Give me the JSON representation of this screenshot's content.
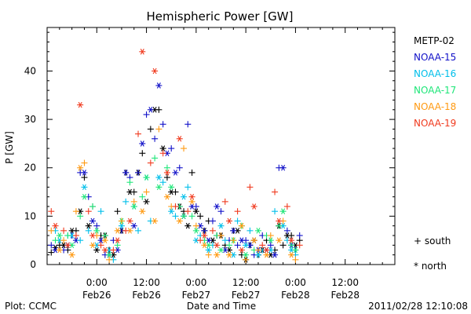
{
  "chart_data": {
    "type": "scatter",
    "title": "Hemispheric Power [GW]",
    "xlabel": "Date and Time",
    "ylabel": "P [GW]",
    "x_unit": "hours",
    "xlim": [
      -12,
      72
    ],
    "ylim": [
      0,
      49
    ],
    "yticks": [
      0,
      10,
      20,
      30,
      40
    ],
    "xticks": [
      {
        "x": 0,
        "time": "0:00",
        "date": "Feb26"
      },
      {
        "x": 12,
        "time": "12:00",
        "date": "Feb26"
      },
      {
        "x": 24,
        "time": "0:00",
        "date": "Feb27"
      },
      {
        "x": 36,
        "time": "12:00",
        "date": "Feb27"
      },
      {
        "x": 48,
        "time": "0:00",
        "date": "Feb28"
      },
      {
        "x": 60,
        "time": "12:00",
        "date": "Feb28"
      }
    ],
    "grid": false,
    "legend_position": "right",
    "marker_legend": [
      {
        "marker": "+",
        "label": "south"
      },
      {
        "marker": "*",
        "label": "north"
      }
    ],
    "series": [
      {
        "name": "METP-02",
        "color": "#000000",
        "south": [
          [
            -11,
            2.5
          ],
          [
            -9,
            4
          ],
          [
            -7,
            3
          ],
          [
            -5,
            7
          ],
          [
            -3,
            18
          ],
          [
            -1,
            12
          ],
          [
            1,
            6
          ],
          [
            3,
            3
          ],
          [
            5,
            11
          ],
          [
            7,
            19
          ],
          [
            9,
            15
          ],
          [
            11,
            23
          ],
          [
            13,
            28
          ],
          [
            15,
            32
          ],
          [
            17,
            18
          ],
          [
            19,
            15
          ],
          [
            21,
            11
          ],
          [
            23,
            19
          ],
          [
            25,
            10
          ],
          [
            27,
            9
          ],
          [
            29,
            6
          ],
          [
            31,
            4
          ],
          [
            33,
            7
          ],
          [
            35,
            2
          ],
          [
            37,
            4
          ],
          [
            39,
            2
          ],
          [
            41,
            5
          ],
          [
            43,
            3
          ],
          [
            45,
            4
          ],
          [
            47,
            6
          ],
          [
            49,
            5
          ]
        ],
        "north": [
          [
            -10,
            3.5
          ],
          [
            -8,
            4
          ],
          [
            -6,
            7
          ],
          [
            -4,
            11
          ],
          [
            -2,
            8
          ],
          [
            0,
            3
          ],
          [
            2,
            6
          ],
          [
            4,
            2
          ],
          [
            6,
            7
          ],
          [
            8,
            15
          ],
          [
            10,
            19
          ],
          [
            12,
            13
          ],
          [
            14,
            32
          ],
          [
            16,
            24
          ],
          [
            18,
            15
          ],
          [
            20,
            12
          ],
          [
            22,
            8
          ],
          [
            24,
            11
          ],
          [
            26,
            7
          ],
          [
            28,
            5
          ],
          [
            30,
            6
          ],
          [
            32,
            3
          ],
          [
            34,
            7
          ],
          [
            36,
            1
          ],
          [
            38,
            5
          ],
          [
            40,
            3
          ],
          [
            42,
            2
          ],
          [
            44,
            8
          ],
          [
            46,
            6
          ],
          [
            48,
            4
          ]
        ]
      },
      {
        "name": "NOAA-15",
        "color": "#1010c8",
        "south": [
          [
            -11,
            4
          ],
          [
            -8,
            3
          ],
          [
            -6,
            6
          ],
          [
            -4,
            19
          ],
          [
            -2,
            14
          ],
          [
            0,
            8
          ],
          [
            2,
            2
          ],
          [
            4,
            5
          ],
          [
            6,
            7
          ],
          [
            8,
            18
          ],
          [
            10,
            19
          ],
          [
            12,
            31
          ],
          [
            14,
            26
          ],
          [
            16,
            29
          ],
          [
            18,
            24
          ],
          [
            20,
            20
          ],
          [
            22,
            29
          ],
          [
            24,
            12
          ],
          [
            26,
            7
          ],
          [
            28,
            9
          ],
          [
            30,
            11
          ],
          [
            32,
            5
          ],
          [
            34,
            4
          ],
          [
            36,
            5
          ],
          [
            38,
            2
          ],
          [
            40,
            6
          ],
          [
            42,
            4
          ],
          [
            44,
            20
          ],
          [
            46,
            7
          ],
          [
            48,
            3
          ],
          [
            49,
            6
          ]
        ],
        "north": [
          [
            -10,
            3
          ],
          [
            -7,
            4
          ],
          [
            -5,
            5
          ],
          [
            -3,
            19
          ],
          [
            -1,
            9
          ],
          [
            1,
            5
          ],
          [
            3,
            2
          ],
          [
            5,
            3
          ],
          [
            7,
            19
          ],
          [
            9,
            8
          ],
          [
            11,
            25
          ],
          [
            13,
            32
          ],
          [
            15,
            37
          ],
          [
            17,
            23
          ],
          [
            19,
            19
          ],
          [
            21,
            10
          ],
          [
            23,
            12
          ],
          [
            25,
            8
          ],
          [
            27,
            5
          ],
          [
            29,
            12
          ],
          [
            31,
            3
          ],
          [
            33,
            7
          ],
          [
            35,
            5
          ],
          [
            37,
            4
          ],
          [
            39,
            3
          ],
          [
            41,
            3
          ],
          [
            43,
            2
          ],
          [
            45,
            20
          ],
          [
            47,
            4
          ]
        ]
      },
      {
        "name": "NOAA-16",
        "color": "#00bfea",
        "south": [
          [
            -10,
            7
          ],
          [
            -7,
            6
          ],
          [
            -4,
            5
          ],
          [
            -2,
            7
          ],
          [
            1,
            11
          ],
          [
            4,
            1
          ],
          [
            7,
            13
          ],
          [
            10,
            7
          ],
          [
            13,
            9
          ],
          [
            16,
            17
          ],
          [
            19,
            10
          ],
          [
            22,
            16
          ],
          [
            25,
            6
          ],
          [
            28,
            4
          ],
          [
            31,
            5
          ],
          [
            34,
            9
          ],
          [
            37,
            7
          ],
          [
            40,
            3
          ],
          [
            43,
            11
          ],
          [
            46,
            5
          ],
          [
            48,
            2
          ]
        ],
        "north": [
          [
            -9,
            5
          ],
          [
            -6,
            6
          ],
          [
            -3,
            16
          ],
          [
            0,
            4
          ],
          [
            3,
            3
          ],
          [
            6,
            8
          ],
          [
            9,
            12
          ],
          [
            12,
            18
          ],
          [
            15,
            18
          ],
          [
            18,
            11
          ],
          [
            21,
            14
          ],
          [
            24,
            5
          ],
          [
            27,
            3
          ],
          [
            30,
            8
          ],
          [
            33,
            2
          ],
          [
            36,
            4
          ],
          [
            39,
            2
          ],
          [
            42,
            3
          ],
          [
            45,
            8
          ],
          [
            47,
            3
          ]
        ]
      },
      {
        "name": "NOAA-17",
        "color": "#1ee678",
        "south": [
          [
            -10,
            5
          ],
          [
            -7,
            6
          ],
          [
            -4,
            10
          ],
          [
            -1,
            12
          ],
          [
            2,
            6
          ],
          [
            5,
            4
          ],
          [
            8,
            17
          ],
          [
            11,
            14
          ],
          [
            14,
            22
          ],
          [
            17,
            20
          ],
          [
            20,
            12
          ],
          [
            23,
            10
          ],
          [
            26,
            5
          ],
          [
            29,
            6
          ],
          [
            32,
            4
          ],
          [
            35,
            8
          ],
          [
            38,
            3
          ],
          [
            41,
            6
          ],
          [
            44,
            8
          ],
          [
            47,
            4
          ]
        ],
        "north": [
          [
            -9,
            6
          ],
          [
            -6,
            4
          ],
          [
            -3,
            14
          ],
          [
            0,
            7
          ],
          [
            3,
            2
          ],
          [
            6,
            9
          ],
          [
            9,
            12
          ],
          [
            12,
            18
          ],
          [
            15,
            16
          ],
          [
            18,
            16
          ],
          [
            21,
            10
          ],
          [
            24,
            7
          ],
          [
            27,
            4
          ],
          [
            30,
            3
          ],
          [
            33,
            5
          ],
          [
            36,
            2
          ],
          [
            39,
            7
          ],
          [
            42,
            5
          ],
          [
            45,
            11
          ],
          [
            48,
            3
          ]
        ]
      },
      {
        "name": "NOAA-18",
        "color": "#ff9a12",
        "south": [
          [
            -11,
            7
          ],
          [
            -8,
            5
          ],
          [
            -5,
            11
          ],
          [
            -3,
            21
          ],
          [
            0,
            6
          ],
          [
            3,
            1
          ],
          [
            6,
            9
          ],
          [
            9,
            13
          ],
          [
            12,
            15
          ],
          [
            15,
            28
          ],
          [
            18,
            12
          ],
          [
            21,
            24
          ],
          [
            24,
            8
          ],
          [
            27,
            2
          ],
          [
            30,
            6
          ],
          [
            33,
            5
          ],
          [
            36,
            1
          ],
          [
            39,
            3
          ],
          [
            42,
            6
          ],
          [
            45,
            9
          ],
          [
            48,
            1
          ]
        ],
        "north": [
          [
            -9,
            3
          ],
          [
            -6,
            2
          ],
          [
            -4,
            20
          ],
          [
            -1,
            4
          ],
          [
            2,
            5
          ],
          [
            5,
            7
          ],
          [
            8,
            7
          ],
          [
            11,
            11
          ],
          [
            14,
            9
          ],
          [
            17,
            14
          ],
          [
            20,
            9
          ],
          [
            23,
            13
          ],
          [
            26,
            4
          ],
          [
            29,
            2
          ],
          [
            32,
            2
          ],
          [
            35,
            8
          ],
          [
            38,
            5
          ],
          [
            41,
            2
          ],
          [
            44,
            5
          ],
          [
            47,
            2
          ]
        ]
      },
      {
        "name": "NOAA-19",
        "color": "#f03a1e",
        "south": [
          [
            -11,
            11
          ],
          [
            -8,
            7
          ],
          [
            -5,
            6
          ],
          [
            -2,
            11
          ],
          [
            1,
            4
          ],
          [
            4,
            3
          ],
          [
            7,
            7
          ],
          [
            10,
            27
          ],
          [
            13,
            21
          ],
          [
            16,
            23
          ],
          [
            19,
            12
          ],
          [
            22,
            11
          ],
          [
            25,
            5
          ],
          [
            28,
            7
          ],
          [
            31,
            13
          ],
          [
            34,
            11
          ],
          [
            37,
            16
          ],
          [
            40,
            4
          ],
          [
            43,
            15
          ],
          [
            46,
            12
          ],
          [
            49,
            4
          ]
        ],
        "north": [
          [
            -10,
            8
          ],
          [
            -7,
            4
          ],
          [
            -4,
            33
          ],
          [
            -1,
            6
          ],
          [
            2,
            3
          ],
          [
            5,
            5
          ],
          [
            8,
            9
          ],
          [
            11,
            44
          ],
          [
            14,
            40
          ],
          [
            17,
            19
          ],
          [
            20,
            26
          ],
          [
            23,
            14
          ],
          [
            26,
            6
          ],
          [
            29,
            4
          ],
          [
            32,
            9
          ],
          [
            35,
            3
          ],
          [
            38,
            12
          ],
          [
            41,
            3
          ],
          [
            44,
            9
          ],
          [
            47,
            5
          ]
        ]
      }
    ]
  },
  "footer": {
    "left": "Plot: CCMC",
    "center": "Date and Time",
    "right": "2011/02/28 12:10:08"
  }
}
